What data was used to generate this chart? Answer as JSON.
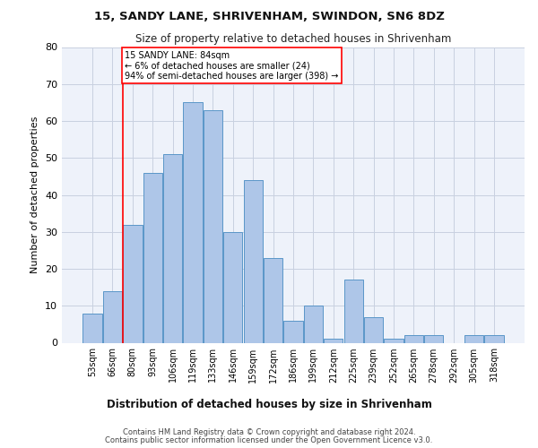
{
  "title_line1": "15, SANDY LANE, SHRIVENHAM, SWINDON, SN6 8DZ",
  "title_line2": "Size of property relative to detached houses in Shrivenham",
  "xlabel": "Distribution of detached houses by size in Shrivenham",
  "ylabel": "Number of detached properties",
  "bar_color": "#aec6e8",
  "bar_edge_color": "#5a96c8",
  "categories": [
    "53sqm",
    "66sqm",
    "80sqm",
    "93sqm",
    "106sqm",
    "119sqm",
    "133sqm",
    "146sqm",
    "159sqm",
    "172sqm",
    "186sqm",
    "199sqm",
    "212sqm",
    "225sqm",
    "239sqm",
    "252sqm",
    "265sqm",
    "278sqm",
    "292sqm",
    "305sqm",
    "318sqm"
  ],
  "values": [
    8,
    14,
    32,
    46,
    51,
    65,
    63,
    30,
    44,
    23,
    6,
    10,
    1,
    17,
    7,
    1,
    2,
    2,
    0,
    2,
    2
  ],
  "ylim": [
    0,
    80
  ],
  "yticks": [
    0,
    10,
    20,
    30,
    40,
    50,
    60,
    70,
    80
  ],
  "vline_x": 1.5,
  "annotation_text": "15 SANDY LANE: 84sqm\n← 6% of detached houses are smaller (24)\n94% of semi-detached houses are larger (398) →",
  "annotation_box_color": "white",
  "annotation_box_edge_color": "red",
  "vline_color": "red",
  "background_color": "#eef2fa",
  "grid_color": "#c8d0e0",
  "footer_line1": "Contains HM Land Registry data © Crown copyright and database right 2024.",
  "footer_line2": "Contains public sector information licensed under the Open Government Licence v3.0."
}
